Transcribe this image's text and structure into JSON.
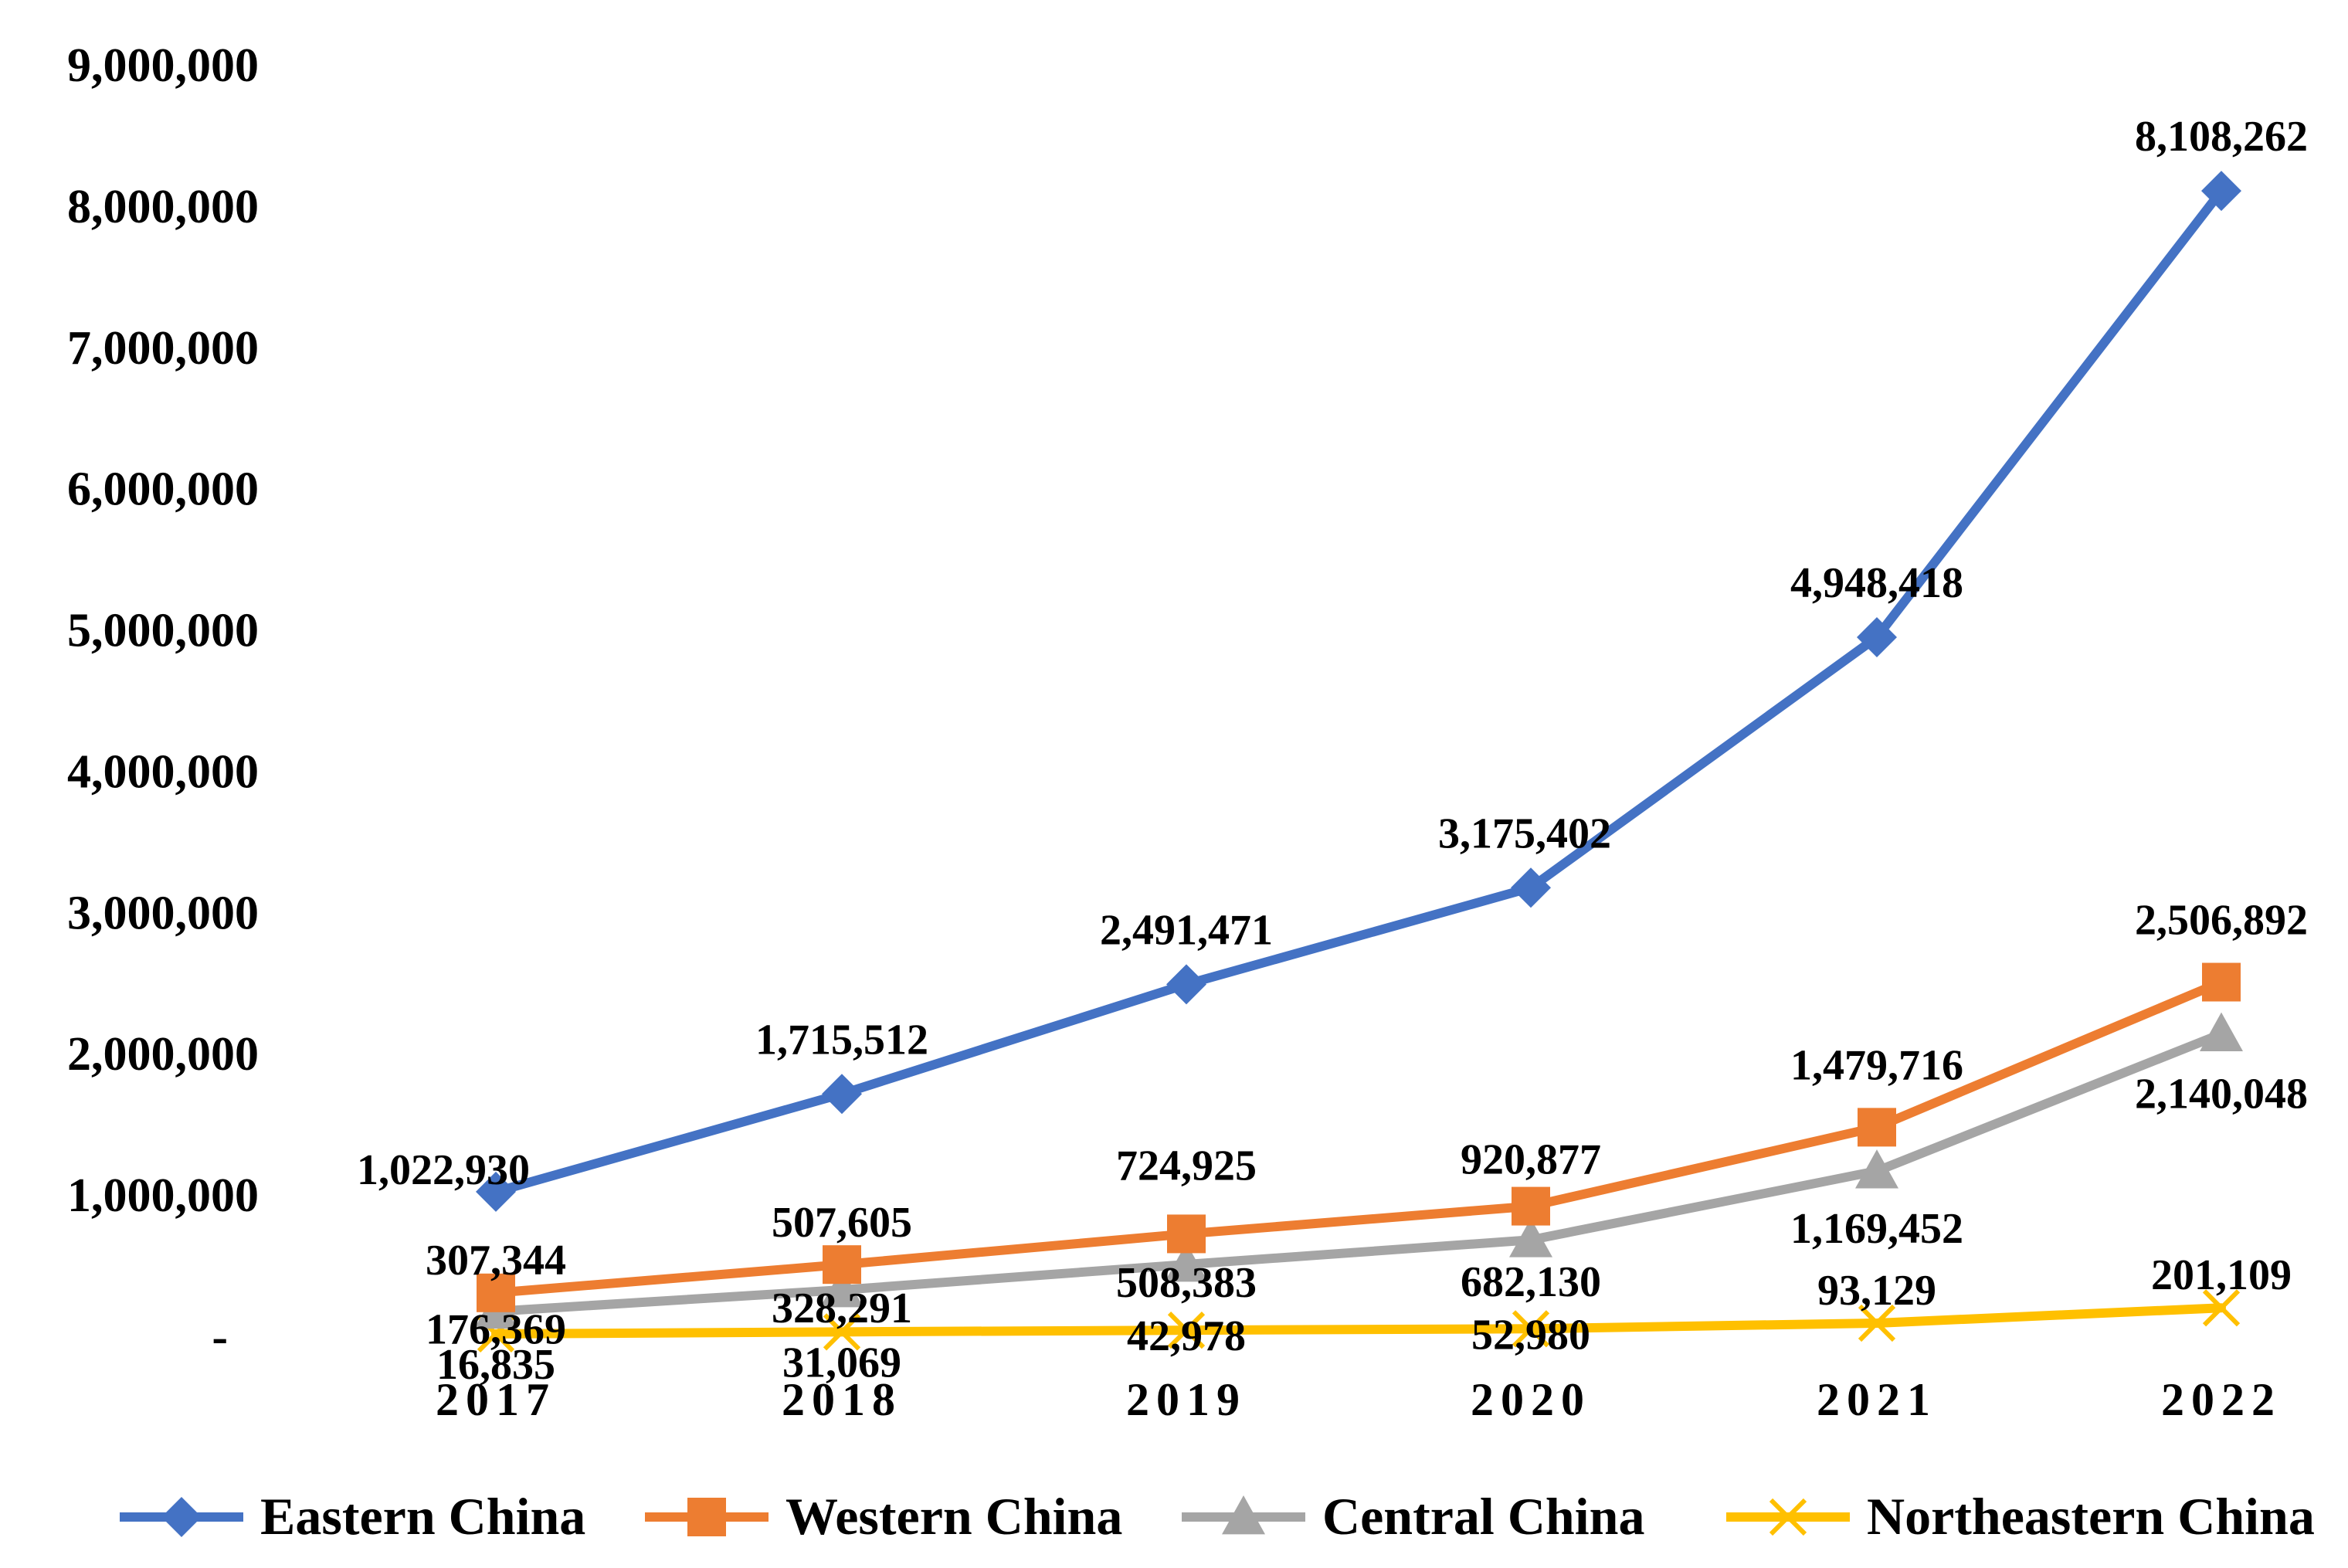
{
  "chart_data": {
    "type": "line",
    "title": "",
    "xlabel": "",
    "ylabel": "",
    "ylim": [
      0,
      9000000
    ],
    "grid": false,
    "legend_position": "bottom",
    "y_ticks": [
      {
        "value": 0,
        "label": "-"
      },
      {
        "value": 1000000,
        "label": "1,000,000"
      },
      {
        "value": 2000000,
        "label": "2,000,000"
      },
      {
        "value": 3000000,
        "label": "3,000,000"
      },
      {
        "value": 4000000,
        "label": "4,000,000"
      },
      {
        "value": 5000000,
        "label": "5,000,000"
      },
      {
        "value": 6000000,
        "label": "6,000,000"
      },
      {
        "value": 7000000,
        "label": "7,000,000"
      },
      {
        "value": 8000000,
        "label": "8,000,000"
      },
      {
        "value": 9000000,
        "label": "9,000,000"
      }
    ],
    "categories": [
      "2017",
      "2018",
      "2019",
      "2020",
      "2021",
      "2022"
    ],
    "series": [
      {
        "name": "Eastern China",
        "color": "#4472C4",
        "marker": "diamond",
        "values": [
          1022930,
          1715512,
          2491471,
          3175402,
          4948418,
          8108262
        ],
        "labels": [
          "1,022,930",
          "1,715,512",
          "2,491,471",
          "3,175,402",
          "4,948,418",
          "8,108,262"
        ]
      },
      {
        "name": "Western China",
        "color": "#ED7D31",
        "marker": "square",
        "values": [
          307344,
          507605,
          724925,
          920877,
          1479716,
          2506892
        ],
        "labels": [
          "307,344",
          "507,605",
          "724,925",
          "920,877",
          "1,479,716",
          "2,506,892"
        ]
      },
      {
        "name": "Central China",
        "color": "#A5A5A5",
        "marker": "triangle",
        "values": [
          176369,
          328291,
          508383,
          682130,
          1169452,
          2140048
        ],
        "labels": [
          "176,369",
          "328,291",
          "508,383",
          "682,130",
          "1,169,452",
          "2,140,048"
        ]
      },
      {
        "name": "Northeastern China",
        "color": "#FFC000",
        "marker": "x",
        "values": [
          16835,
          31069,
          42978,
          52980,
          93129,
          201109
        ],
        "labels": [
          "16,835",
          "31,069",
          "42,978",
          "52,980",
          "93,129",
          "201,109"
        ]
      }
    ]
  }
}
